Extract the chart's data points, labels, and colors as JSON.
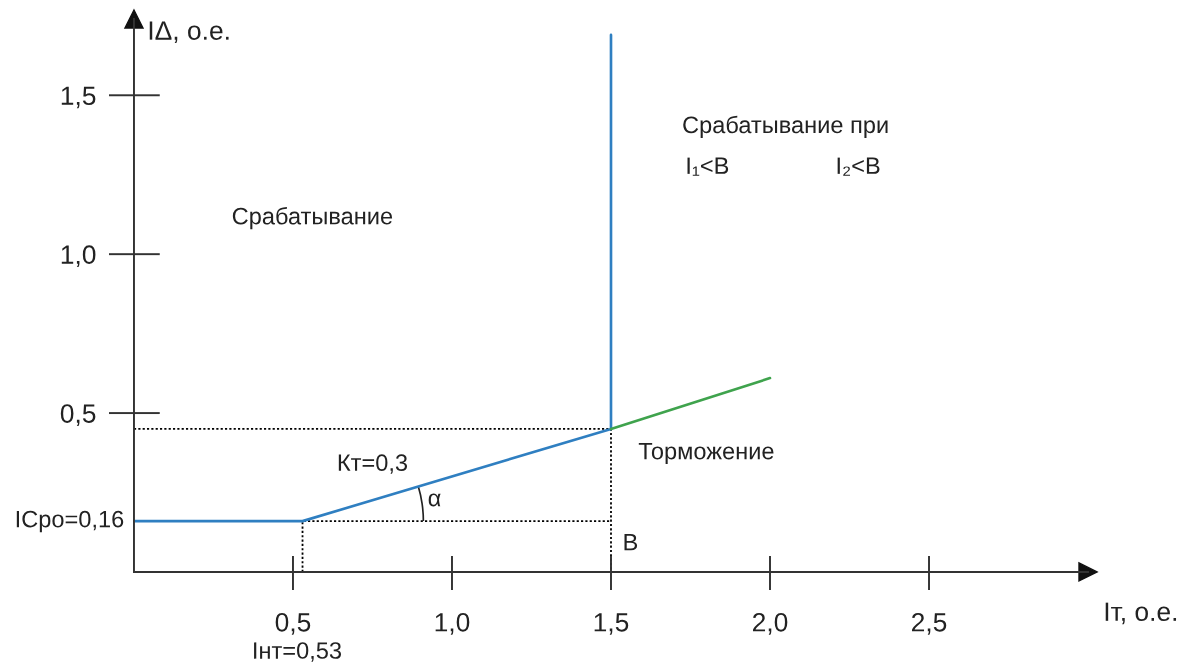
{
  "chart_data": {
    "type": "line",
    "xlabel": "Iт, о.е.",
    "ylabel": "IΔ, о.е.",
    "xlim": [
      0,
      3.0
    ],
    "ylim": [
      0,
      1.74
    ],
    "xticks": [
      {
        "value": 0.5,
        "label": "0,5"
      },
      {
        "value": 1.0,
        "label": "1,0"
      },
      {
        "value": 1.5,
        "label": "1,5"
      },
      {
        "value": 2.0,
        "label": "2,0"
      },
      {
        "value": 2.5,
        "label": "2,5"
      }
    ],
    "yticks": [
      {
        "value": 0.5,
        "label": "0,5"
      },
      {
        "value": 1.0,
        "label": "1,0"
      },
      {
        "value": 1.5,
        "label": "1,5"
      }
    ],
    "series": [
      {
        "x": [
          0,
          1.5,
          1.5
        ],
        "values": [
          0.45,
          0.45,
          0
        ],
        "color": "#000000",
        "line_style": "dotted"
      },
      {
        "x": [
          0.53,
          0.53,
          1.5
        ],
        "values": [
          0,
          0.16,
          0.16
        ],
        "color": "#000000",
        "line_style": "dotted"
      },
      {
        "x": [
          0,
          0.53,
          1.5,
          1.5
        ],
        "values": [
          0.16,
          0.16,
          0.45,
          1.69
        ],
        "color": "#2f7fc1",
        "line_style": "solid"
      },
      {
        "x": [
          1.5,
          2.0
        ],
        "values": [
          0.45,
          0.61
        ],
        "color": "#3fa34d",
        "line_style": "solid"
      }
    ],
    "annotations": [
      "Срабатывание",
      "Срабатывание при",
      "I₁<B",
      "I₂<B",
      "Торможение",
      "Кт=0,3",
      "α",
      {
        "text": "IСро=0,16",
        "x": 0,
        "y": 0.16
      },
      {
        "text": "Iнт=0,53",
        "x": 0.53,
        "y": 0
      },
      {
        "text": "B",
        "x": 1.5,
        "y": 0
      }
    ]
  }
}
